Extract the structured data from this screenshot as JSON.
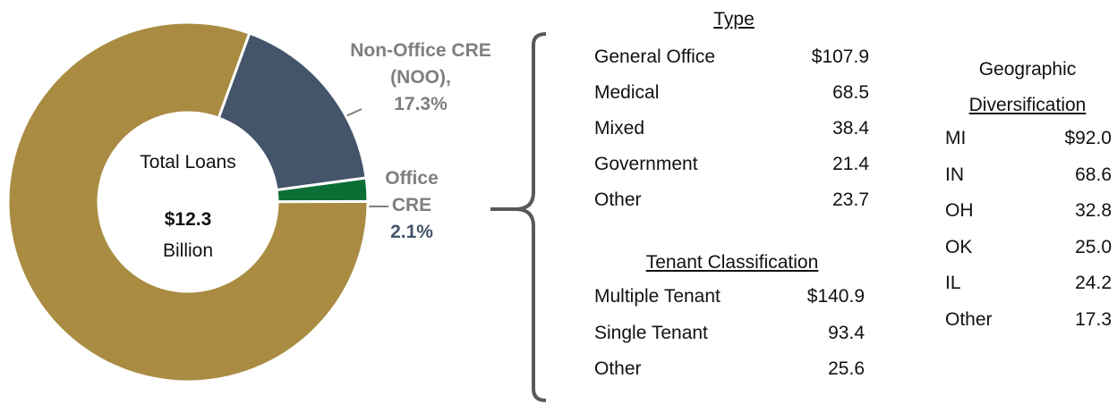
{
  "chart_data": {
    "type": "donut",
    "categories": [
      "Non-Office CRE (NOO),",
      "Office CRE",
      null
    ],
    "values": [
      17.3,
      2.1,
      80.6
    ],
    "value_labels": [
      "17.3%",
      "2.1%",
      null
    ],
    "colors": [
      "#44546a",
      "#0b6e35",
      "#a98c42"
    ],
    "center": {
      "label": "Total Loans",
      "value": "$12.3",
      "unit": "Billion"
    }
  },
  "tables": {
    "type": {
      "title": "Type",
      "rows": [
        [
          "General Office",
          "$107.9"
        ],
        [
          "Medical",
          "68.5"
        ],
        [
          "Mixed",
          "38.4"
        ],
        [
          "Government",
          "21.4"
        ],
        [
          "Other",
          "23.7"
        ]
      ]
    },
    "tenant": {
      "title": "Tenant Classification",
      "rows": [
        [
          "Multiple Tenant",
          "$140.9"
        ],
        [
          "Single Tenant",
          "93.4"
        ],
        [
          "Other",
          "25.6"
        ]
      ]
    },
    "geo": {
      "title_line1": "Geographic",
      "title_line2": "Diversification",
      "rows": [
        [
          "MI",
          "$92.0"
        ],
        [
          "IN",
          "68.6"
        ],
        [
          "OH",
          "32.8"
        ],
        [
          "OK",
          "25.0"
        ],
        [
          "IL",
          "24.2"
        ],
        [
          "Other",
          "17.3"
        ]
      ]
    }
  }
}
